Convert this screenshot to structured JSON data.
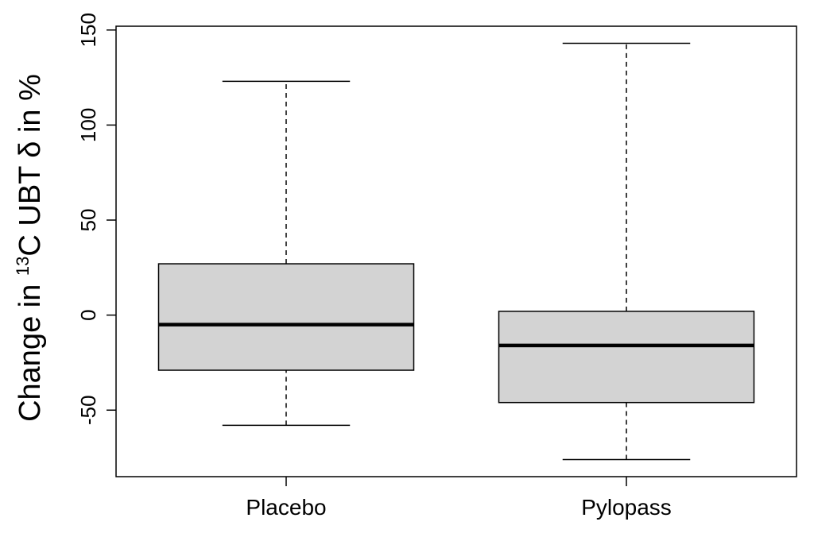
{
  "chart_data": {
    "type": "boxplot",
    "title": "",
    "xlabel": "",
    "ylabel_parts": [
      "Change in ",
      "13",
      "C UBT δ in %"
    ],
    "ylim": [
      -85,
      152
    ],
    "yticks": [
      -50,
      0,
      50,
      100,
      150
    ],
    "ytick_labels": [
      "-50",
      "0",
      "50",
      "100",
      "150"
    ],
    "grid": false,
    "box_fill": "#d3d3d3",
    "categories": [
      "Placebo",
      "Pylopass"
    ],
    "boxes": [
      {
        "name": "Placebo",
        "whisker_low": -58,
        "q1": -29,
        "median": -5,
        "q3": 27,
        "whisker_high": 123
      },
      {
        "name": "Pylopass",
        "whisker_low": -76,
        "q1": -46,
        "median": -16,
        "q3": 2,
        "whisker_high": 143
      }
    ]
  }
}
